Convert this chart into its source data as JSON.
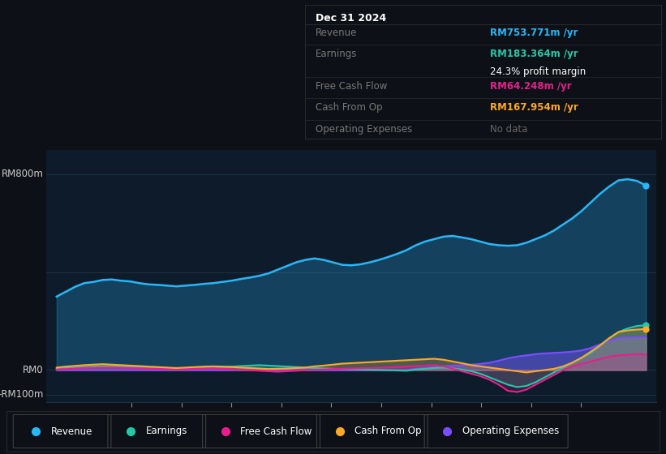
{
  "bg_color": "#0d1117",
  "chart_bg": "#0d1b2a",
  "colors": {
    "revenue": "#29b6f6",
    "earnings": "#26c6a8",
    "free_cash_flow": "#e91e8c",
    "cash_from_op": "#ffa726",
    "operating_expenses": "#7c4dff"
  },
  "info_box": {
    "date": "Dec 31 2024",
    "revenue": "RM753.771m",
    "earnings": "RM183.364m",
    "profit_margin": "24.3%",
    "free_cash_flow": "RM64.248m",
    "cash_from_op": "RM167.954m",
    "operating_expenses": "No data"
  },
  "ylim": [
    -130,
    900
  ],
  "xlim_start": 2013.3,
  "xlim_end": 2025.5,
  "xticks": [
    2015,
    2016,
    2017,
    2018,
    2019,
    2020,
    2021,
    2022,
    2023,
    2024
  ],
  "revenue": [
    300,
    320,
    340,
    355,
    360,
    368,
    370,
    365,
    362,
    355,
    350,
    348,
    345,
    342,
    345,
    348,
    352,
    355,
    360,
    365,
    372,
    378,
    385,
    395,
    410,
    425,
    440,
    450,
    456,
    450,
    440,
    430,
    428,
    432,
    440,
    450,
    462,
    475,
    490,
    510,
    525,
    535,
    545,
    548,
    542,
    535,
    525,
    515,
    510,
    508,
    510,
    520,
    535,
    550,
    570,
    595,
    620,
    650,
    685,
    720,
    750,
    775,
    780,
    773,
    754
  ],
  "earnings": [
    5,
    8,
    10,
    12,
    14,
    15,
    16,
    15,
    14,
    12,
    10,
    8,
    6,
    4,
    5,
    6,
    8,
    10,
    12,
    14,
    16,
    18,
    20,
    18,
    16,
    14,
    12,
    10,
    8,
    6,
    5,
    4,
    3,
    2,
    1,
    0,
    -1,
    -2,
    -3,
    2,
    5,
    8,
    10,
    6,
    2,
    -5,
    -15,
    -30,
    -45,
    -60,
    -70,
    -65,
    -50,
    -30,
    -10,
    10,
    30,
    50,
    70,
    100,
    130,
    155,
    170,
    180,
    183
  ],
  "free_cash_flow": [
    2,
    4,
    6,
    8,
    9,
    10,
    10,
    9,
    8,
    7,
    6,
    5,
    4,
    3,
    4,
    5,
    6,
    7,
    5,
    3,
    1,
    -1,
    -3,
    -5,
    -7,
    -5,
    -3,
    -1,
    1,
    2,
    4,
    5,
    6,
    7,
    8,
    9,
    10,
    12,
    14,
    16,
    18,
    20,
    15,
    5,
    -5,
    -15,
    -25,
    -40,
    -60,
    -85,
    -90,
    -80,
    -60,
    -40,
    -20,
    0,
    15,
    25,
    35,
    45,
    55,
    60,
    62,
    65,
    64
  ],
  "cash_from_op": [
    10,
    14,
    17,
    20,
    22,
    24,
    22,
    20,
    18,
    16,
    14,
    12,
    10,
    8,
    10,
    12,
    14,
    15,
    14,
    12,
    10,
    8,
    6,
    4,
    5,
    6,
    8,
    10,
    15,
    18,
    22,
    26,
    28,
    30,
    32,
    34,
    36,
    38,
    40,
    42,
    44,
    46,
    42,
    35,
    28,
    20,
    15,
    10,
    5,
    0,
    -5,
    -10,
    -5,
    0,
    5,
    15,
    30,
    50,
    75,
    100,
    130,
    155,
    162,
    165,
    168
  ],
  "operating_expenses": [
    0,
    0,
    0,
    0,
    0,
    0,
    0,
    0,
    0,
    0,
    0,
    0,
    0,
    0,
    0,
    0,
    0,
    0,
    0,
    0,
    0,
    0,
    0,
    0,
    0,
    0,
    0,
    0,
    0,
    0,
    0,
    0,
    0,
    0,
    0,
    0,
    0,
    0,
    0,
    5,
    8,
    12,
    15,
    18,
    20,
    22,
    25,
    30,
    38,
    48,
    55,
    60,
    65,
    68,
    70,
    72,
    75,
    80,
    90,
    105,
    120,
    130,
    132,
    133,
    133
  ]
}
